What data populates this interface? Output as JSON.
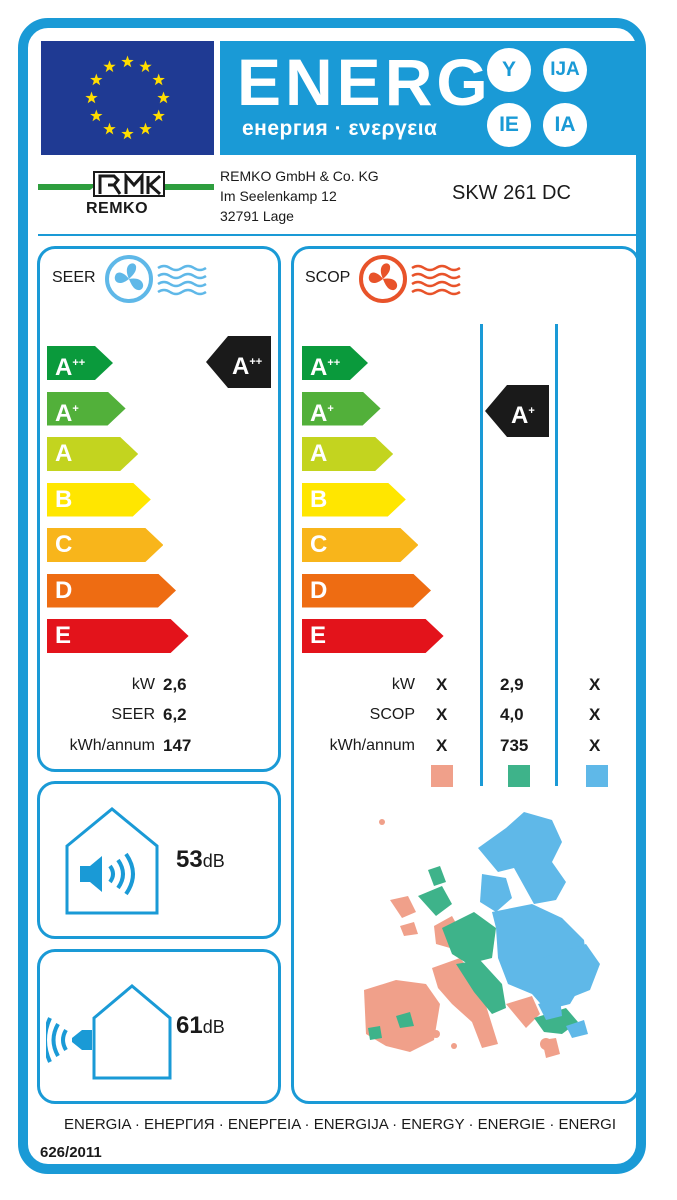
{
  "header": {
    "title": "ENERG",
    "subtitle": "енергия · ενεργεια",
    "suffixes": [
      "Y",
      "IJA",
      "IE",
      "IA"
    ]
  },
  "supplier": {
    "logo_text": "REMKO",
    "company": "REMKO GmbH & Co. KG",
    "street": "Im Seelenkamp 12",
    "city": "32791 Lage",
    "model": "SKW 261 DC"
  },
  "scale": {
    "labels": [
      "A++",
      "A+",
      "A",
      "B",
      "C",
      "D",
      "E"
    ],
    "colors": [
      "#0a9a3c",
      "#52b03a",
      "#c3d41f",
      "#ffe600",
      "#f8b51b",
      "#ee6c12",
      "#e3131b"
    ]
  },
  "seer": {
    "label": "SEER",
    "class": "A++",
    "rows": [
      {
        "label": "kW",
        "value": "2,6"
      },
      {
        "label": "SEER",
        "value": "6,2"
      },
      {
        "label": "kWh/annum",
        "value": "147"
      }
    ]
  },
  "scop": {
    "label": "SCOP",
    "class": "A+",
    "rows": [
      {
        "label": "kW",
        "warm": "X",
        "average": "2,9",
        "cold": "X"
      },
      {
        "label": "SCOP",
        "warm": "X",
        "average": "4,0",
        "cold": "X"
      },
      {
        "label": "kWh/annum",
        "warm": "X",
        "average": "735",
        "cold": "X"
      }
    ],
    "zone_colors": [
      "#f0a08a",
      "#3eb38a",
      "#5fb8e8"
    ]
  },
  "noise": {
    "indoor_value": "53",
    "outdoor_value": "61",
    "unit": "dB"
  },
  "footer": {
    "languages": "ENERGIA · ЕНЕРГИЯ · ΕΝΕΡΓΕΙΑ · ENERGIJA · ENERGY · ENERGIE · ENERGI",
    "regulation": "626/2011"
  },
  "icons": [
    "eu-flag-icon",
    "fan-cooling-icon",
    "fan-heating-icon",
    "indoor-noise-icon",
    "outdoor-noise-icon",
    "europe-map-icon"
  ]
}
